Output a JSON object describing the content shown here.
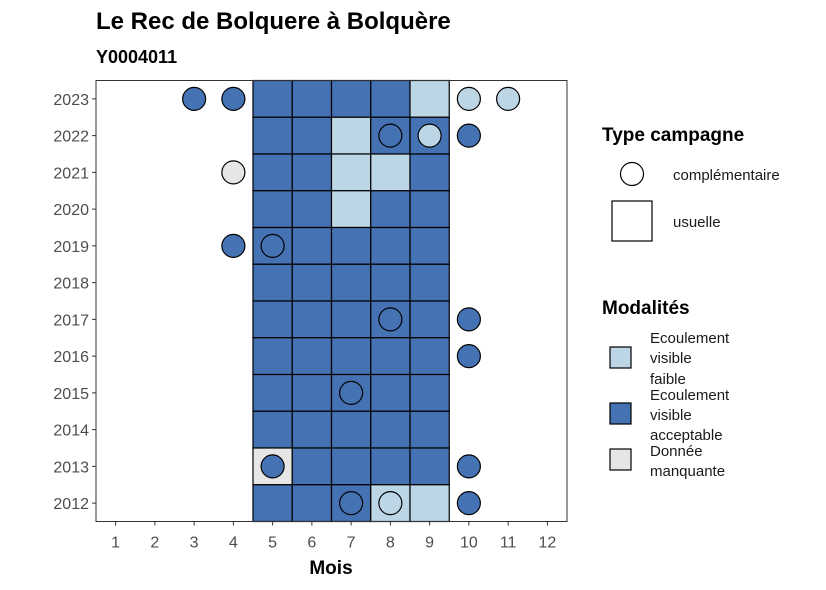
{
  "chart_data": {
    "type": "heatmap",
    "title": "Le Rec de Bolquere à Bolquère",
    "subtitle": "Y0004011",
    "xlabel": "Mois",
    "ylabel": "",
    "x_ticks": [
      "1",
      "2",
      "3",
      "4",
      "5",
      "6",
      "7",
      "8",
      "9",
      "10",
      "11",
      "12"
    ],
    "y_ticks": [
      "2012",
      "2013",
      "2014",
      "2015",
      "2016",
      "2017",
      "2018",
      "2019",
      "2020",
      "2021",
      "2022",
      "2023"
    ],
    "xlim": [
      0.5,
      12.5
    ],
    "ylim": [
      2011.5,
      2023.5
    ],
    "grid": false,
    "legend_position": "right",
    "colors": {
      "faible": "#bcd6e6",
      "acceptable": "#4472b3",
      "manquante": "#e6e6e6"
    },
    "legend_campaign": {
      "title": "Type campagne",
      "items": [
        {
          "label": "complémentaire",
          "shape": "circle"
        },
        {
          "label": "usuelle",
          "shape": "square"
        }
      ]
    },
    "legend_modalities": {
      "title": "Modalités",
      "items": [
        {
          "key": "faible",
          "lines": [
            "Ecoulement",
            "visible",
            "faible"
          ]
        },
        {
          "key": "acceptable",
          "lines": [
            "Ecoulement",
            "visible",
            "acceptable"
          ]
        },
        {
          "key": "manquante",
          "lines": [
            "Donnée",
            "manquante"
          ]
        }
      ]
    },
    "usuelle": [
      {
        "year": 2023,
        "month": 5,
        "value": "acceptable"
      },
      {
        "year": 2023,
        "month": 6,
        "value": "acceptable"
      },
      {
        "year": 2023,
        "month": 7,
        "value": "acceptable"
      },
      {
        "year": 2023,
        "month": 8,
        "value": "acceptable"
      },
      {
        "year": 2023,
        "month": 9,
        "value": "faible"
      },
      {
        "year": 2022,
        "month": 5,
        "value": "acceptable"
      },
      {
        "year": 2022,
        "month": 6,
        "value": "acceptable"
      },
      {
        "year": 2022,
        "month": 7,
        "value": "faible"
      },
      {
        "year": 2022,
        "month": 8,
        "value": "acceptable"
      },
      {
        "year": 2022,
        "month": 9,
        "value": "acceptable"
      },
      {
        "year": 2021,
        "month": 5,
        "value": "acceptable"
      },
      {
        "year": 2021,
        "month": 6,
        "value": "acceptable"
      },
      {
        "year": 2021,
        "month": 7,
        "value": "faible"
      },
      {
        "year": 2021,
        "month": 8,
        "value": "faible"
      },
      {
        "year": 2021,
        "month": 9,
        "value": "acceptable"
      },
      {
        "year": 2020,
        "month": 5,
        "value": "acceptable"
      },
      {
        "year": 2020,
        "month": 6,
        "value": "acceptable"
      },
      {
        "year": 2020,
        "month": 7,
        "value": "faible"
      },
      {
        "year": 2020,
        "month": 8,
        "value": "acceptable"
      },
      {
        "year": 2020,
        "month": 9,
        "value": "acceptable"
      },
      {
        "year": 2019,
        "month": 5,
        "value": "acceptable"
      },
      {
        "year": 2019,
        "month": 6,
        "value": "acceptable"
      },
      {
        "year": 2019,
        "month": 7,
        "value": "acceptable"
      },
      {
        "year": 2019,
        "month": 8,
        "value": "acceptable"
      },
      {
        "year": 2019,
        "month": 9,
        "value": "acceptable"
      },
      {
        "year": 2018,
        "month": 5,
        "value": "acceptable"
      },
      {
        "year": 2018,
        "month": 6,
        "value": "acceptable"
      },
      {
        "year": 2018,
        "month": 7,
        "value": "acceptable"
      },
      {
        "year": 2018,
        "month": 8,
        "value": "acceptable"
      },
      {
        "year": 2018,
        "month": 9,
        "value": "acceptable"
      },
      {
        "year": 2017,
        "month": 5,
        "value": "acceptable"
      },
      {
        "year": 2017,
        "month": 6,
        "value": "acceptable"
      },
      {
        "year": 2017,
        "month": 7,
        "value": "acceptable"
      },
      {
        "year": 2017,
        "month": 8,
        "value": "acceptable"
      },
      {
        "year": 2017,
        "month": 9,
        "value": "acceptable"
      },
      {
        "year": 2016,
        "month": 5,
        "value": "acceptable"
      },
      {
        "year": 2016,
        "month": 6,
        "value": "acceptable"
      },
      {
        "year": 2016,
        "month": 7,
        "value": "acceptable"
      },
      {
        "year": 2016,
        "month": 8,
        "value": "acceptable"
      },
      {
        "year": 2016,
        "month": 9,
        "value": "acceptable"
      },
      {
        "year": 2015,
        "month": 5,
        "value": "acceptable"
      },
      {
        "year": 2015,
        "month": 6,
        "value": "acceptable"
      },
      {
        "year": 2015,
        "month": 7,
        "value": "acceptable"
      },
      {
        "year": 2015,
        "month": 8,
        "value": "acceptable"
      },
      {
        "year": 2015,
        "month": 9,
        "value": "acceptable"
      },
      {
        "year": 2014,
        "month": 5,
        "value": "acceptable"
      },
      {
        "year": 2014,
        "month": 6,
        "value": "acceptable"
      },
      {
        "year": 2014,
        "month": 7,
        "value": "acceptable"
      },
      {
        "year": 2014,
        "month": 8,
        "value": "acceptable"
      },
      {
        "year": 2014,
        "month": 9,
        "value": "acceptable"
      },
      {
        "year": 2013,
        "month": 5,
        "value": "manquante"
      },
      {
        "year": 2013,
        "month": 6,
        "value": "acceptable"
      },
      {
        "year": 2013,
        "month": 7,
        "value": "acceptable"
      },
      {
        "year": 2013,
        "month": 8,
        "value": "acceptable"
      },
      {
        "year": 2013,
        "month": 9,
        "value": "acceptable"
      },
      {
        "year": 2012,
        "month": 5,
        "value": "acceptable"
      },
      {
        "year": 2012,
        "month": 6,
        "value": "acceptable"
      },
      {
        "year": 2012,
        "month": 7,
        "value": "acceptable"
      },
      {
        "year": 2012,
        "month": 8,
        "value": "faible"
      },
      {
        "year": 2012,
        "month": 9,
        "value": "faible"
      }
    ],
    "complementaire": [
      {
        "year": 2023,
        "month": 3,
        "value": "acceptable"
      },
      {
        "year": 2023,
        "month": 4,
        "value": "acceptable"
      },
      {
        "year": 2023,
        "month": 10,
        "value": "faible"
      },
      {
        "year": 2023,
        "month": 11,
        "value": "faible"
      },
      {
        "year": 2022,
        "month": 8,
        "value": "acceptable"
      },
      {
        "year": 2022,
        "month": 9,
        "value": "faible"
      },
      {
        "year": 2022,
        "month": 10,
        "value": "acceptable"
      },
      {
        "year": 2021,
        "month": 4,
        "value": "manquante"
      },
      {
        "year": 2019,
        "month": 4,
        "value": "acceptable"
      },
      {
        "year": 2019,
        "month": 5,
        "value": "acceptable"
      },
      {
        "year": 2017,
        "month": 8,
        "value": "acceptable"
      },
      {
        "year": 2017,
        "month": 10,
        "value": "acceptable"
      },
      {
        "year": 2016,
        "month": 10,
        "value": "acceptable"
      },
      {
        "year": 2015,
        "month": 7,
        "value": "acceptable"
      },
      {
        "year": 2013,
        "month": 5,
        "value": "acceptable"
      },
      {
        "year": 2013,
        "month": 10,
        "value": "acceptable"
      },
      {
        "year": 2012,
        "month": 7,
        "value": "acceptable"
      },
      {
        "year": 2012,
        "month": 8,
        "value": "faible"
      },
      {
        "year": 2012,
        "month": 10,
        "value": "acceptable"
      }
    ]
  }
}
